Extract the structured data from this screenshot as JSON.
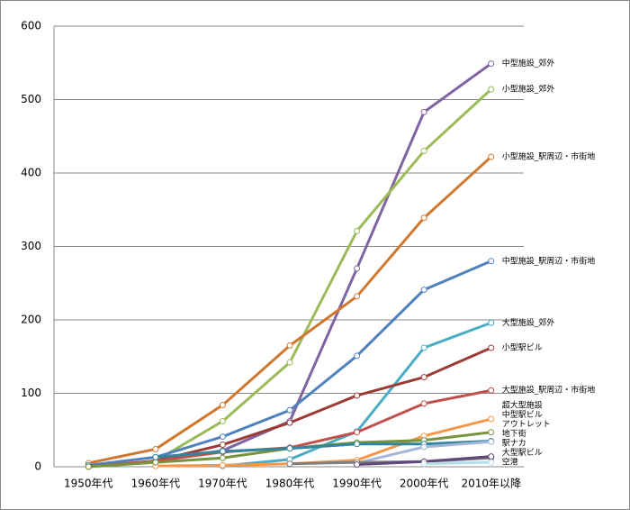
{
  "chart_data": {
    "type": "line",
    "categories": [
      "1950年代",
      "1960年代",
      "1970年代",
      "1980年代",
      "1990年代",
      "2000年代",
      "2010年以降"
    ],
    "ylim": [
      0,
      600
    ],
    "yticks": [
      0,
      100,
      200,
      300,
      400,
      500,
      600
    ],
    "grid": true,
    "series": [
      {
        "name": "中型施設_郊外",
        "color": "#8064a2",
        "values": [
          null,
          8,
          22,
          62,
          270,
          483,
          549
        ]
      },
      {
        "name": "小型施設_郊外",
        "color": "#9bbb59",
        "values": [
          0,
          8,
          62,
          142,
          321,
          430,
          514
        ]
      },
      {
        "name": "小型施設_駅周辺・市街地",
        "color": "#d0782f",
        "values": [
          5,
          24,
          84,
          165,
          232,
          339,
          422
        ]
      },
      {
        "name": "中型施設_駅周辺・市街地",
        "color": "#4f81bd",
        "values": [
          2,
          13,
          41,
          77,
          151,
          241,
          280
        ]
      },
      {
        "name": "大型施設_郊外",
        "color": "#4bacc6",
        "values": [
          null,
          null,
          1,
          10,
          48,
          162,
          196
        ]
      },
      {
        "name": "小型駅ビル",
        "color": "#9b3b36",
        "values": [
          null,
          8,
          30,
          60,
          97,
          122,
          162
        ]
      },
      {
        "name": "大型施設_駅周辺・市街地",
        "color": "#c0504d",
        "values": [
          0,
          8,
          20,
          26,
          47,
          86,
          104
        ]
      },
      {
        "name": "超大型施設",
        "color": "#f79646",
        "values": [
          null,
          1,
          2,
          4,
          9,
          42,
          65
        ]
      },
      {
        "name": "中型駅ビル",
        "color": "#77933c",
        "values": [
          0,
          6,
          12,
          25,
          33,
          36,
          47
        ]
      },
      {
        "name": "アウトレット",
        "color": "#31859c",
        "values": [
          null,
          13,
          21,
          25,
          31,
          31,
          35
        ]
      },
      {
        "name": "地下街",
        "color": "#a5b6d6",
        "values": [
          null,
          null,
          null,
          null,
          5,
          27,
          34
        ]
      },
      {
        "name": "大型駅ビル",
        "color": "#7f7f7f",
        "values": [
          null,
          null,
          null,
          4,
          6,
          7,
          12
        ]
      },
      {
        "name": "駅ナカ",
        "color": "#60497a",
        "values": [
          null,
          null,
          null,
          null,
          3,
          7,
          14
        ]
      },
      {
        "name": "空港",
        "color": "#b7dee8",
        "values": [
          null,
          null,
          null,
          null,
          null,
          4,
          6
        ]
      }
    ]
  }
}
